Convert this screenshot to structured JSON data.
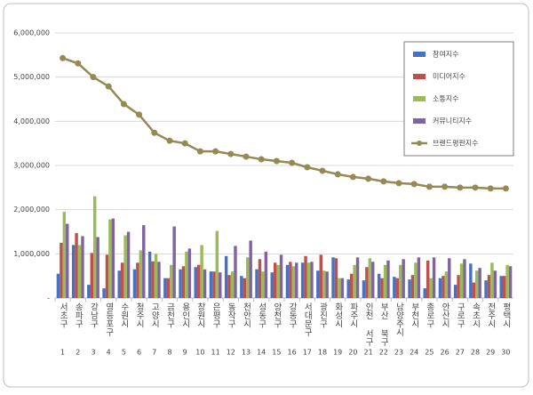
{
  "chart_data": {
    "type": "bar-line",
    "categories": [
      "서초구",
      "송파구",
      "강남구",
      "영등포구",
      "수원시",
      "청주시",
      "고양시",
      "금천구",
      "용인시",
      "창원시",
      "은평구",
      "동작구",
      "천안시",
      "성동구",
      "양천구",
      "강동구",
      "서대문구",
      "광진구",
      "화성시",
      "파주시",
      "인천 서구",
      "부산 북구",
      "남양주시",
      "부천시",
      "종로구",
      "안산시",
      "구로구",
      "속초시",
      "전주시",
      "평택시"
    ],
    "ranks": [
      1,
      2,
      3,
      4,
      5,
      6,
      7,
      8,
      9,
      10,
      11,
      12,
      13,
      14,
      15,
      16,
      17,
      18,
      19,
      20,
      21,
      22,
      23,
      24,
      25,
      26,
      27,
      28,
      29,
      30
    ],
    "series": [
      {
        "name": "참여지수",
        "color": "#4472c4",
        "kind": "bar",
        "values": [
          550000,
          1200000,
          300000,
          220000,
          620000,
          650000,
          1050000,
          450000,
          650000,
          700000,
          600000,
          950000,
          500000,
          650000,
          580000,
          750000,
          800000,
          620000,
          920000,
          420000,
          400000,
          550000,
          480000,
          420000,
          220000,
          450000,
          300000,
          780000,
          400000,
          500000
        ]
      },
      {
        "name": "미디어지수",
        "color": "#c0504d",
        "kind": "bar",
        "values": [
          1250000,
          1470000,
          1020000,
          980000,
          800000,
          800000,
          830000,
          450000,
          720000,
          750000,
          600000,
          520000,
          450000,
          880000,
          800000,
          820000,
          950000,
          980000,
          900000,
          550000,
          700000,
          450000,
          450000,
          520000,
          850000,
          500000,
          520000,
          350000,
          520000,
          500000
        ]
      },
      {
        "name": "소통지수",
        "color": "#9bbb59",
        "kind": "bar",
        "values": [
          1950000,
          1200000,
          2300000,
          1780000,
          1420000,
          1080000,
          1000000,
          750000,
          1050000,
          1200000,
          1520000,
          600000,
          920000,
          600000,
          750000,
          720000,
          800000,
          620000,
          450000,
          750000,
          900000,
          750000,
          750000,
          800000,
          450000,
          600000,
          780000,
          620000,
          800000,
          750000
        ]
      },
      {
        "name": "커뮤니티지수",
        "color": "#8064a2",
        "kind": "bar",
        "values": [
          1680000,
          1400000,
          1380000,
          1800000,
          1500000,
          1650000,
          820000,
          1620000,
          1120000,
          650000,
          580000,
          1180000,
          1300000,
          1050000,
          980000,
          800000,
          820000,
          600000,
          450000,
          920000,
          820000,
          850000,
          880000,
          920000,
          920000,
          900000,
          880000,
          680000,
          620000,
          720000
        ]
      },
      {
        "name": "브랜드평판지수",
        "color": "#948a54",
        "kind": "line",
        "values": [
          5430000,
          5310000,
          5000000,
          4790000,
          4390000,
          4150000,
          3740000,
          3560000,
          3500000,
          3320000,
          3320000,
          3260000,
          3200000,
          3140000,
          3100000,
          3060000,
          2960000,
          2880000,
          2800000,
          2740000,
          2700000,
          2640000,
          2600000,
          2580000,
          2520000,
          2520000,
          2500000,
          2500000,
          2480000,
          2480000
        ]
      }
    ],
    "ylim": [
      0,
      6000000
    ],
    "yticks": [
      {
        "value": 0,
        "label": "-"
      },
      {
        "value": 1000000,
        "label": "1,000,000"
      },
      {
        "value": 2000000,
        "label": "2,000,000"
      },
      {
        "value": 3000000,
        "label": "3,000,000"
      },
      {
        "value": 4000000,
        "label": "4,000,000"
      },
      {
        "value": 5000000,
        "label": "5,000,000"
      },
      {
        "value": 6000000,
        "label": "6,000,000"
      }
    ],
    "grid": true,
    "legend": "top-right"
  }
}
